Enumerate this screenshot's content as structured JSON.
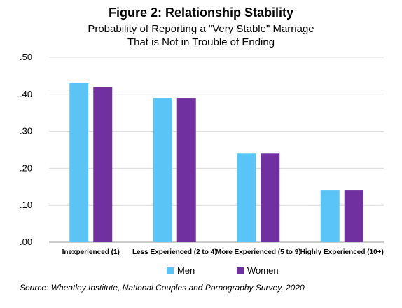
{
  "chart_data": {
    "type": "bar",
    "title": "Figure 2: Relationship Stability",
    "subtitle": [
      "Probability of Reporting a \"Very Stable\" Marriage",
      "That is Not in Trouble of Ending"
    ],
    "categories": [
      "Inexperienced (1)",
      "Less Experienced (2 to 4)",
      "More Experienced (5 to 9)",
      "Highly Experienced (10+)"
    ],
    "series": [
      {
        "name": "Men",
        "color": "#5BC4F7",
        "values": [
          0.43,
          0.39,
          0.24,
          0.14
        ]
      },
      {
        "name": "Women",
        "color": "#7030A0",
        "values": [
          0.42,
          0.39,
          0.24,
          0.14
        ]
      }
    ],
    "ylim": [
      0,
      0.5
    ],
    "yticks": [
      ".00",
      ".10",
      ".20",
      ".30",
      ".40",
      ".50"
    ],
    "grid": true,
    "legend": "bottom",
    "source": "Source: Wheatley Institute, National Couples and Pornography Survey, 2020"
  }
}
